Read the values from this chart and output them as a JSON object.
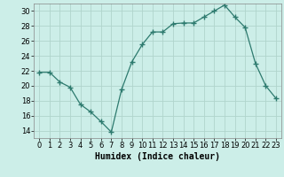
{
  "x": [
    0,
    1,
    2,
    3,
    4,
    5,
    6,
    7,
    8,
    9,
    10,
    11,
    12,
    13,
    14,
    15,
    16,
    17,
    18,
    19,
    20,
    21,
    22,
    23
  ],
  "y": [
    21.8,
    21.8,
    20.5,
    19.8,
    17.5,
    16.5,
    15.2,
    13.8,
    19.5,
    23.2,
    25.5,
    27.2,
    27.2,
    28.3,
    28.4,
    28.4,
    29.2,
    30.0,
    30.8,
    29.2,
    27.8,
    23.0,
    20.0,
    18.3
  ],
  "line_color": "#2d7a6e",
  "marker": "+",
  "marker_size": 5,
  "bg_color": "#cceee8",
  "grid_color": "#b0d4cc",
  "xlabel": "Humidex (Indice chaleur)",
  "ylim": [
    13,
    31
  ],
  "xlim": [
    -0.5,
    23.5
  ],
  "yticks": [
    14,
    16,
    18,
    20,
    22,
    24,
    26,
    28,
    30
  ],
  "xtick_labels": [
    "0",
    "1",
    "2",
    "3",
    "4",
    "5",
    "6",
    "7",
    "8",
    "9",
    "10",
    "11",
    "12",
    "13",
    "14",
    "15",
    "16",
    "17",
    "18",
    "19",
    "20",
    "21",
    "22",
    "23"
  ],
  "label_fontsize": 7,
  "tick_fontsize": 6
}
